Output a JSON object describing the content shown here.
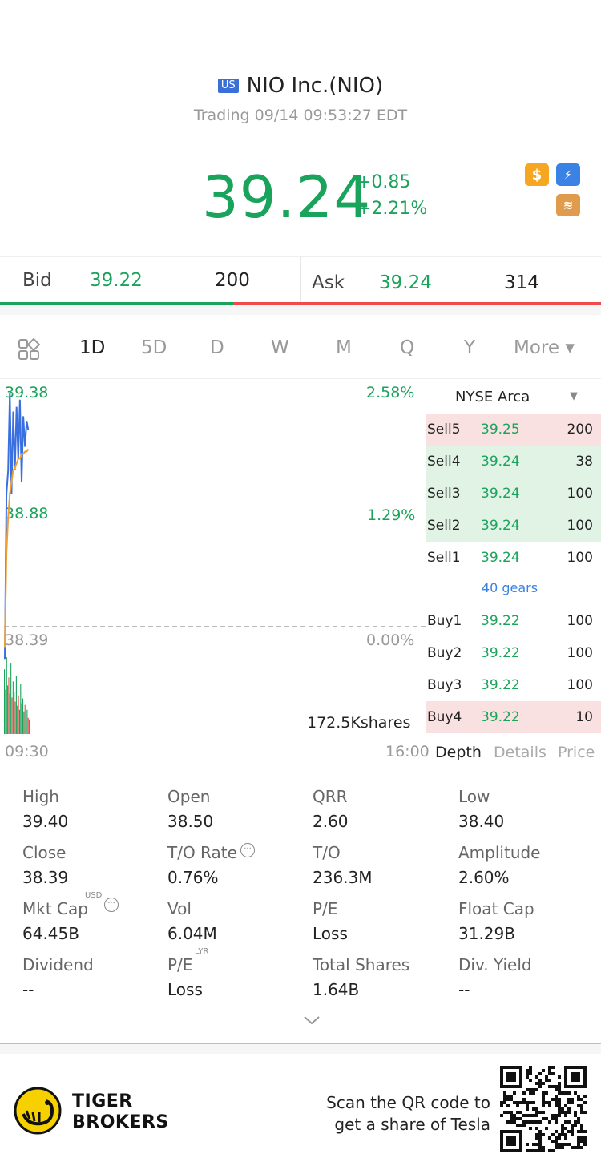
{
  "header": {
    "market_badge": "US",
    "title": "NIO Inc.(NIO)",
    "status": "Trading 09/14 09:53:27 EDT"
  },
  "quote": {
    "price": "39.24",
    "change": "+0.85",
    "change_pct": "+2.21%",
    "bid_label": "Bid",
    "bid_price": "39.22",
    "bid_qty": "200",
    "ask_label": "Ask",
    "ask_price": "39.24",
    "ask_qty": "314",
    "bid_share_pct": 38.8
  },
  "tabs": [
    "1D",
    "5D",
    "D",
    "W",
    "M",
    "Q",
    "Y",
    "More ▾"
  ],
  "active_tab": "1D",
  "chart": {
    "y_top": "39.38",
    "y_mid": "38.88",
    "y_base": "38.39",
    "pct_top": "2.58%",
    "pct_mid": "1.29%",
    "pct_base": "0.00%",
    "volume_label": "172.5Kshares",
    "time_start": "09:30",
    "time_end": "16:00"
  },
  "chart_data": {
    "type": "line",
    "series": [
      {
        "values": [
          38.25,
          38.95,
          39.05,
          39.38,
          38.95,
          39.3,
          39.05,
          39.32,
          39.1,
          39.35,
          39.0,
          39.28,
          39.15,
          39.26,
          39.22
        ]
      },
      {
        "values": [
          38.3,
          38.7,
          38.85,
          38.95,
          39.0,
          39.05,
          39.06,
          39.08,
          39.1,
          39.1,
          39.12,
          39.12,
          39.13,
          39.13,
          39.14
        ]
      }
    ],
    "volume": [
      80,
      55,
      95,
      60,
      70,
      50,
      88,
      45,
      65,
      52,
      40,
      72,
      35,
      48,
      30,
      62,
      38,
      44,
      28,
      36,
      24,
      30,
      20,
      18
    ],
    "ylim": [
      38.39,
      39.38
    ]
  },
  "order_book": {
    "exchange": "NYSE Arca",
    "gears_label": "40 gears",
    "asks": [
      {
        "label": "Sell5",
        "price": "39.25",
        "qty": "200",
        "bg": "#f9e1e1"
      },
      {
        "label": "Sell4",
        "price": "39.24",
        "qty": "38",
        "bg": "#e1f3e4"
      },
      {
        "label": "Sell3",
        "price": "39.24",
        "qty": "100",
        "bg": "#e1f3e4"
      },
      {
        "label": "Sell2",
        "price": "39.24",
        "qty": "100",
        "bg": "#e1f3e4"
      },
      {
        "label": "Sell1",
        "price": "39.24",
        "qty": "100",
        "bg": "#ffffff"
      }
    ],
    "bids": [
      {
        "label": "Buy1",
        "price": "39.22",
        "qty": "100",
        "bg": "#ffffff"
      },
      {
        "label": "Buy2",
        "price": "39.22",
        "qty": "100",
        "bg": "#ffffff"
      },
      {
        "label": "Buy3",
        "price": "39.22",
        "qty": "100",
        "bg": "#ffffff"
      },
      {
        "label": "Buy4",
        "price": "39.22",
        "qty": "10",
        "bg": "#f9e1e1"
      }
    ],
    "tabs": [
      "Depth",
      "Details",
      "Price"
    ]
  },
  "stats": [
    {
      "label": "High",
      "value": "39.40"
    },
    {
      "label": "Open",
      "value": "38.50"
    },
    {
      "label": "QRR",
      "value": "2.60"
    },
    {
      "label": "Low",
      "value": "38.40"
    },
    {
      "label": "Close",
      "value": "38.39"
    },
    {
      "label": "T/O Rate",
      "value": "0.76%"
    },
    {
      "label": "T/O",
      "value": "236.3M"
    },
    {
      "label": "Amplitude",
      "value": "2.60%"
    },
    {
      "label": "Mkt Cap",
      "value": "64.45B"
    },
    {
      "label": "Vol",
      "value": "6.04M"
    },
    {
      "label": "P/E",
      "value": "Loss"
    },
    {
      "label": "Float Cap",
      "value": "31.29B"
    },
    {
      "label": "Dividend",
      "value": "--"
    },
    {
      "label": "P/E",
      "value": "Loss"
    },
    {
      "label": "Total Shares",
      "value": "1.64B"
    },
    {
      "label": "Div. Yield",
      "value": "--"
    }
  ],
  "stat_superscripts": {
    "mkt_cap": "USD",
    "pe_lyr": "LYR"
  },
  "footer": {
    "brand_line1": "TIGER",
    "brand_line2": "BROKERS",
    "promo_line1": "Scan the QR code to",
    "promo_line2": "get a share of Tesla"
  },
  "colors": {
    "up_green": "#1aa35a",
    "down_red": "#ee4c4c",
    "accent_blue": "#3a82e4",
    "line_blue": "#3a6fe0",
    "line_orange": "#f0a030"
  }
}
